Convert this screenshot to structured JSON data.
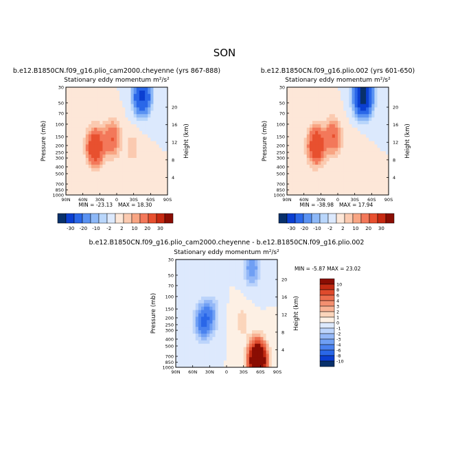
{
  "figure": {
    "title": "SON"
  },
  "colors": {
    "panel_scale": [
      "#08306b",
      "#0b3fd1",
      "#2a67e8",
      "#5a92f2",
      "#8db8f7",
      "#b9d6fb",
      "#dce9fd",
      "#fde7d8",
      "#fbcab0",
      "#f8a583",
      "#f3785a",
      "#e8502f",
      "#c72a12",
      "#8a0d03"
    ],
    "diff_scale": [
      "#08306b",
      "#0b3fd1",
      "#2a67e8",
      "#4a82ef",
      "#6f9ff4",
      "#94b8f7",
      "#bcd4fb",
      "#dde9fd",
      "#fdf0e4",
      "#fbd5bb",
      "#f8b294",
      "#f38f70",
      "#ec6e4e",
      "#de4a2c",
      "#c22a12",
      "#8a0d03"
    ]
  },
  "chart_data": [
    {
      "type": "heatmap",
      "case": "b.e12.B1850CN.f09_g16.plio_cam2000.cheyenne (yrs 867-888)",
      "title": "Stationary eddy momentum",
      "units": "m²/s²",
      "ylabel": "Pressure (mb)",
      "ylabel_right": "Height (km)",
      "xticks": [
        "90N",
        "60N",
        "30N",
        "0",
        "30S",
        "60S",
        "90S"
      ],
      "yticks": [
        "30",
        "50",
        "70",
        "100",
        "150",
        "200",
        "250",
        "300",
        "400",
        "500",
        "700",
        "850",
        "1000"
      ],
      "yticks_right": [
        "20",
        "16",
        "12",
        "8",
        "4"
      ],
      "min_label": "MIN = -23.13",
      "max_label": "MAX = 18.30",
      "min": -23.13,
      "max": 18.3,
      "features": [
        {
          "lat": 38,
          "p": 210,
          "value": 18.3
        },
        {
          "lat": 8,
          "p": 160,
          "value": 10
        },
        {
          "lat": -45,
          "p": 40,
          "value": -23.1
        },
        {
          "lat": -28,
          "p": 220,
          "value": 3
        }
      ]
    },
    {
      "type": "heatmap",
      "case": "b.e12.B1850CN.f09_g16.plio.002 (yrs 601-650)",
      "title": "Stationary eddy momentum",
      "units": "m²/s²",
      "ylabel": "Pressure (mb)",
      "ylabel_right": "Height (km)",
      "xticks": [
        "90N",
        "60N",
        "30N",
        "0",
        "30S",
        "60S",
        "90S"
      ],
      "yticks": [
        "30",
        "50",
        "70",
        "100",
        "150",
        "200",
        "250",
        "300",
        "400",
        "500",
        "700",
        "850",
        "1000"
      ],
      "yticks_right": [
        "20",
        "16",
        "12",
        "8",
        "4"
      ],
      "min_label": "MIN = -38.98",
      "max_label": "MAX = 17.94",
      "min": -38.98,
      "max": 17.94,
      "features": [
        {
          "lat": 38,
          "p": 200,
          "value": 17.9
        },
        {
          "lat": 8,
          "p": 150,
          "value": 10
        },
        {
          "lat": -45,
          "p": 40,
          "value": -39.0
        },
        {
          "lat": -28,
          "p": 220,
          "value": 2
        }
      ]
    },
    {
      "type": "heatmap",
      "case": "b.e12.B1850CN.f09_g16.plio_cam2000.cheyenne - b.e12.B1850CN.f09_g16.plio.002",
      "title": "Stationary eddy momentum",
      "units": "m²/s²",
      "ylabel": "Pressure (mb)",
      "ylabel_right": "Height (km)",
      "xticks": [
        "90N",
        "60N",
        "30N",
        "0",
        "30S",
        "60S",
        "90S"
      ],
      "yticks": [
        "30",
        "50",
        "70",
        "100",
        "150",
        "200",
        "250",
        "300",
        "400",
        "500",
        "700",
        "850",
        "1000"
      ],
      "yticks_right": [
        "20",
        "16",
        "12",
        "8",
        "4"
      ],
      "min_label": "MIN = -5.87",
      "max_label": "MAX = 23.02",
      "min": -5.87,
      "max": 23.02,
      "features": [
        {
          "lat": 42,
          "p": 230,
          "value": -5.9
        },
        {
          "lat": 28,
          "p": 180,
          "value": -3
        },
        {
          "lat": -45,
          "p": 40,
          "value": -4
        },
        {
          "lat": -28,
          "p": 230,
          "value": 1.5
        },
        {
          "lat": -55,
          "p": 800,
          "value": 23.0
        }
      ]
    }
  ],
  "colorbars": {
    "top": {
      "labels": [
        "-30",
        "-20",
        "-10",
        "-2",
        "2",
        "10",
        "20",
        "30"
      ]
    },
    "diff": {
      "labels": [
        "10",
        "8",
        "6",
        "4",
        "3",
        "2",
        "1",
        "0",
        "-1",
        "-2",
        "-3",
        "-4",
        "-6",
        "-8",
        "-10"
      ]
    }
  }
}
